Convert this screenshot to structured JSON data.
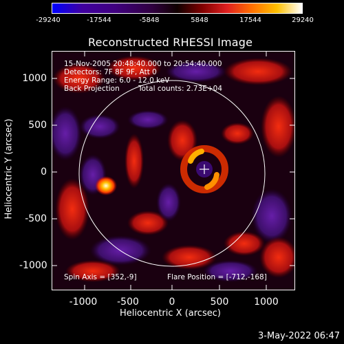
{
  "colorbar": {
    "ticks": [
      "-29240",
      "-17544",
      "-5848",
      "5848",
      "17544",
      "29240"
    ]
  },
  "plot": {
    "title": "Reconstructed RHESSI Image",
    "xlabel": "Heliocentric X (arcsec)",
    "ylabel": "Heliocentric Y (arcsec)",
    "xticks": [
      "-1000",
      "-500",
      "0",
      "500",
      "1000"
    ],
    "yticks": [
      "1000",
      "500",
      "0",
      "-500",
      "-1000"
    ]
  },
  "info": {
    "line1": "15-Nov-2005 20:48:40.000 to 20:54:40.000",
    "line2": "Detectors: 7F 8F 9F, Att 0",
    "line3": "Energy Range: 6.0 - 12.0 keV",
    "line4_left": "Back Projection",
    "line4_right": "Total counts: 2.73E+04",
    "spin_axis": "Spin Axis = [352,-9]",
    "flare_position": "Flare Position = [-712,-168]"
  },
  "footer": {
    "timestamp": "3-May-2022 06:47"
  },
  "colors": {
    "background": "#000000",
    "deep_purple": "#3a0a6a",
    "red": "#c01010",
    "orange": "#ff7000",
    "yellow": "#ffe040"
  }
}
